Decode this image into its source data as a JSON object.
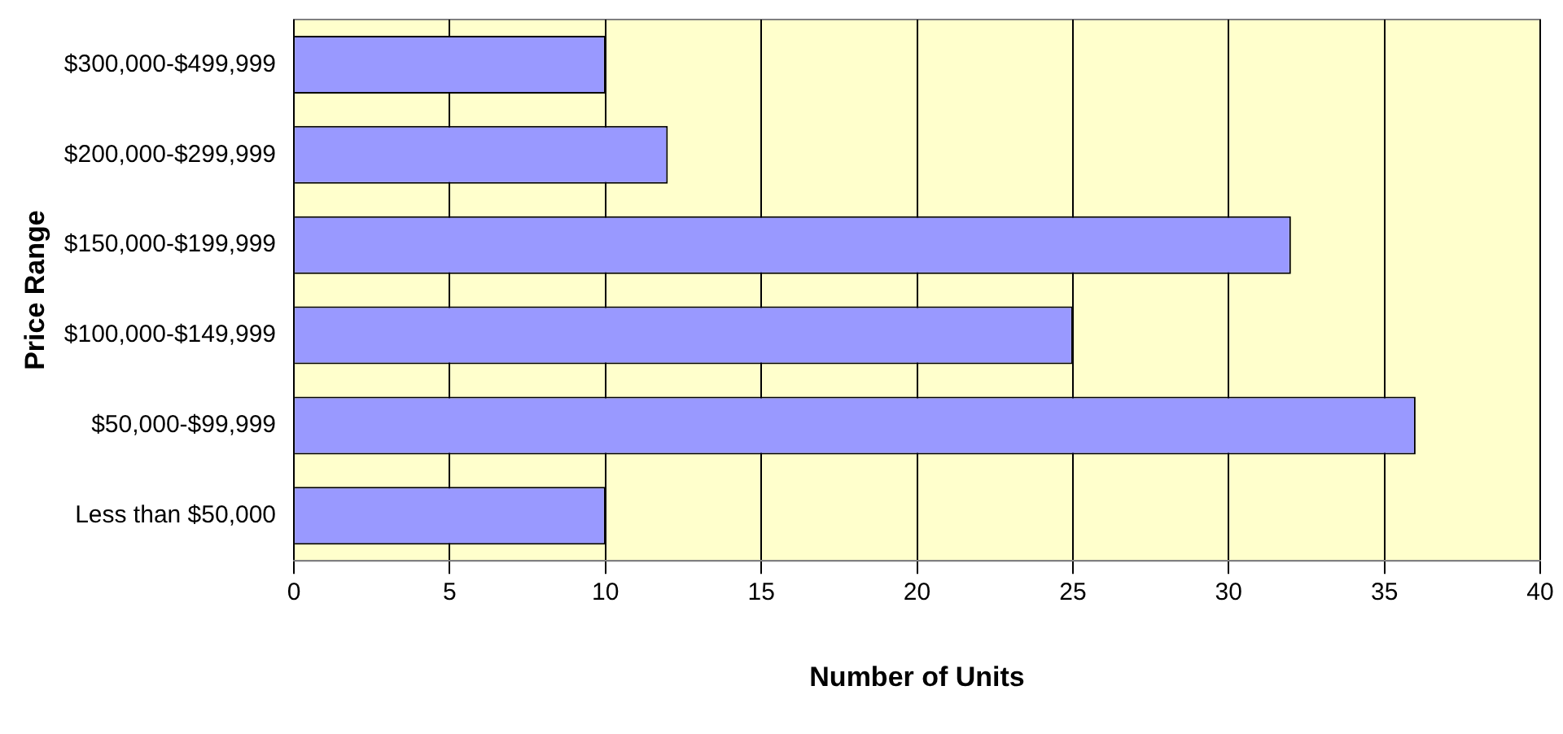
{
  "chart_data": {
    "type": "bar",
    "orientation": "horizontal",
    "xlabel": "Number of Units",
    "ylabel": "Price Range",
    "categories": [
      "$300,000-$499,999",
      "$200,000-$299,999",
      "$150,000-$199,999",
      "$100,000-$149,999",
      "$50,000-$99,999",
      "Less than $50,000"
    ],
    "values": [
      10,
      12,
      32,
      25,
      36,
      10
    ],
    "color": "#9999ff",
    "xlim": [
      0,
      40
    ],
    "xticks": [
      0,
      5,
      10,
      15,
      20,
      25,
      30,
      35,
      40
    ],
    "grid": "x",
    "legend": false
  }
}
